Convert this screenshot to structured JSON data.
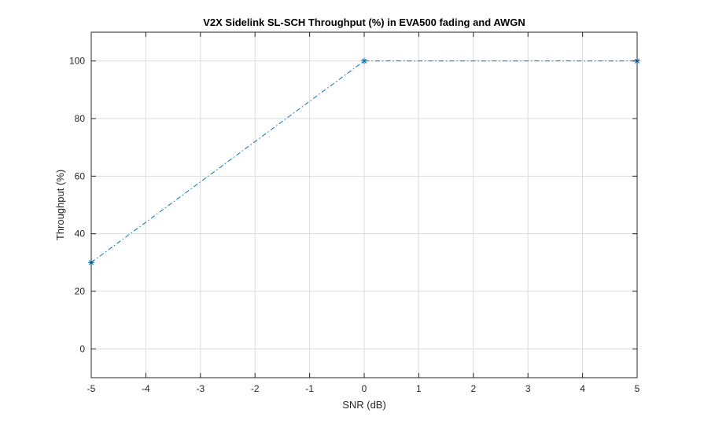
{
  "chart_data": {
    "type": "line",
    "title": "V2X Sidelink SL-SCH Throughput (%) in EVA500 fading and AWGN",
    "xlabel": "SNR (dB)",
    "ylabel": "Throughput (%)",
    "xlim": [
      -5,
      5
    ],
    "ylim": [
      -10,
      110
    ],
    "xticks": [
      -5,
      -4,
      -3,
      -2,
      -1,
      0,
      1,
      2,
      3,
      4,
      5
    ],
    "yticks": [
      0,
      20,
      40,
      60,
      80,
      100
    ],
    "grid": true,
    "series": [
      {
        "name": "Throughput",
        "x": [
          -5,
          0,
          5
        ],
        "y": [
          30,
          100,
          100
        ],
        "color": "#0072BD",
        "line_style": "dash-dot",
        "marker": "asterisk"
      }
    ]
  }
}
